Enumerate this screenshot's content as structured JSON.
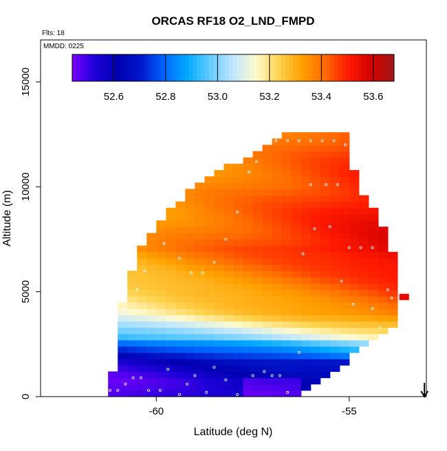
{
  "chart_data": {
    "type": "heatmap",
    "title": "ORCAS RF18 O2_LND_FMPD",
    "subtitle_flts": "Flts: 18",
    "subtitle_mmdd": "MMDD: 0225",
    "xlabel": "Latitude (deg N)",
    "ylabel": "Altitude (m)",
    "xlim": [
      -63,
      -53
    ],
    "ylim": [
      0,
      17000
    ],
    "x_ticks": [
      -60,
      -55
    ],
    "x_tick_labels": [
      "-60",
      "-55"
    ],
    "y_ticks": [
      0,
      5000,
      10000,
      15000
    ],
    "y_tick_labels": [
      "0",
      "5000",
      "10000",
      "15000"
    ],
    "colorbar": {
      "range": [
        52.44,
        53.68
      ],
      "ticks": [
        52.6,
        52.8,
        53.0,
        53.2,
        53.4,
        53.6
      ],
      "tick_labels": [
        "52.6",
        "52.8",
        "53.0",
        "53.2",
        "53.4",
        "53.6"
      ],
      "palette": [
        "#7a00ff",
        "#1c00d8",
        "#0000b0",
        "#0018cc",
        "#0066ff",
        "#00aaff",
        "#66ccff",
        "#bfe6ff",
        "#fffacd",
        "#ffd24d",
        "#ffa000",
        "#ff6a00",
        "#ff1a00",
        "#d40000",
        "#a01818"
      ]
    },
    "grid_cells": {
      "lat_step": 0.25,
      "alt_step": 300,
      "lat_start": -61.25,
      "lat_end": -53.75
    },
    "arrow_marker_lat": -53.05,
    "sample_points": [
      {
        "lat": -61.2,
        "alt": 300
      },
      {
        "lat": -61.0,
        "alt": 300
      },
      {
        "lat": -60.8,
        "alt": 600
      },
      {
        "lat": -60.6,
        "alt": 900
      },
      {
        "lat": -60.4,
        "alt": 900
      },
      {
        "lat": -60.2,
        "alt": 300
      },
      {
        "lat": -59.9,
        "alt": 300
      },
      {
        "lat": -59.7,
        "alt": 1300
      },
      {
        "lat": -59.4,
        "alt": 100
      },
      {
        "lat": -59.2,
        "alt": 600
      },
      {
        "lat": -59.0,
        "alt": 1000
      },
      {
        "lat": -58.7,
        "alt": 200
      },
      {
        "lat": -58.5,
        "alt": 1400
      },
      {
        "lat": -58.2,
        "alt": 800
      },
      {
        "lat": -57.9,
        "alt": 100
      },
      {
        "lat": -57.5,
        "alt": 1000
      },
      {
        "lat": -57.2,
        "alt": 1200
      },
      {
        "lat": -57.0,
        "alt": 1000
      },
      {
        "lat": -56.8,
        "alt": 1000
      },
      {
        "lat": -56.6,
        "alt": 200
      },
      {
        "lat": -56.3,
        "alt": 2100
      },
      {
        "lat": -60.8,
        "alt": 4200
      },
      {
        "lat": -60.5,
        "alt": 5100
      },
      {
        "lat": -60.3,
        "alt": 6000
      },
      {
        "lat": -59.8,
        "alt": 7300
      },
      {
        "lat": -59.4,
        "alt": 6600
      },
      {
        "lat": -59.1,
        "alt": 5900
      },
      {
        "lat": -58.8,
        "alt": 5900
      },
      {
        "lat": -58.5,
        "alt": 6400
      },
      {
        "lat": -58.2,
        "alt": 7500
      },
      {
        "lat": -57.9,
        "alt": 8800
      },
      {
        "lat": -57.6,
        "alt": 10700
      },
      {
        "lat": -57.4,
        "alt": 11200
      },
      {
        "lat": -57.2,
        "alt": 12200
      },
      {
        "lat": -56.9,
        "alt": 12200
      },
      {
        "lat": -56.6,
        "alt": 12200
      },
      {
        "lat": -56.3,
        "alt": 12200
      },
      {
        "lat": -56.0,
        "alt": 12200
      },
      {
        "lat": -55.7,
        "alt": 12200
      },
      {
        "lat": -55.4,
        "alt": 12200
      },
      {
        "lat": -55.1,
        "alt": 12000
      },
      {
        "lat": -55.9,
        "alt": 8000
      },
      {
        "lat": -56.2,
        "alt": 6800
      },
      {
        "lat": -56.0,
        "alt": 10100
      },
      {
        "lat": -55.6,
        "alt": 10100
      },
      {
        "lat": -55.3,
        "alt": 10100
      },
      {
        "lat": -55.0,
        "alt": 7100
      },
      {
        "lat": -54.7,
        "alt": 7100
      },
      {
        "lat": -54.4,
        "alt": 7100
      },
      {
        "lat": -55.5,
        "alt": 8100
      },
      {
        "lat": -55.2,
        "alt": 5500
      },
      {
        "lat": -54.9,
        "alt": 4400
      },
      {
        "lat": -54.4,
        "alt": 4200
      },
      {
        "lat": -54.0,
        "alt": 5100
      },
      {
        "lat": -53.9,
        "alt": 4700
      },
      {
        "lat": -54.2,
        "alt": 3300
      }
    ]
  }
}
